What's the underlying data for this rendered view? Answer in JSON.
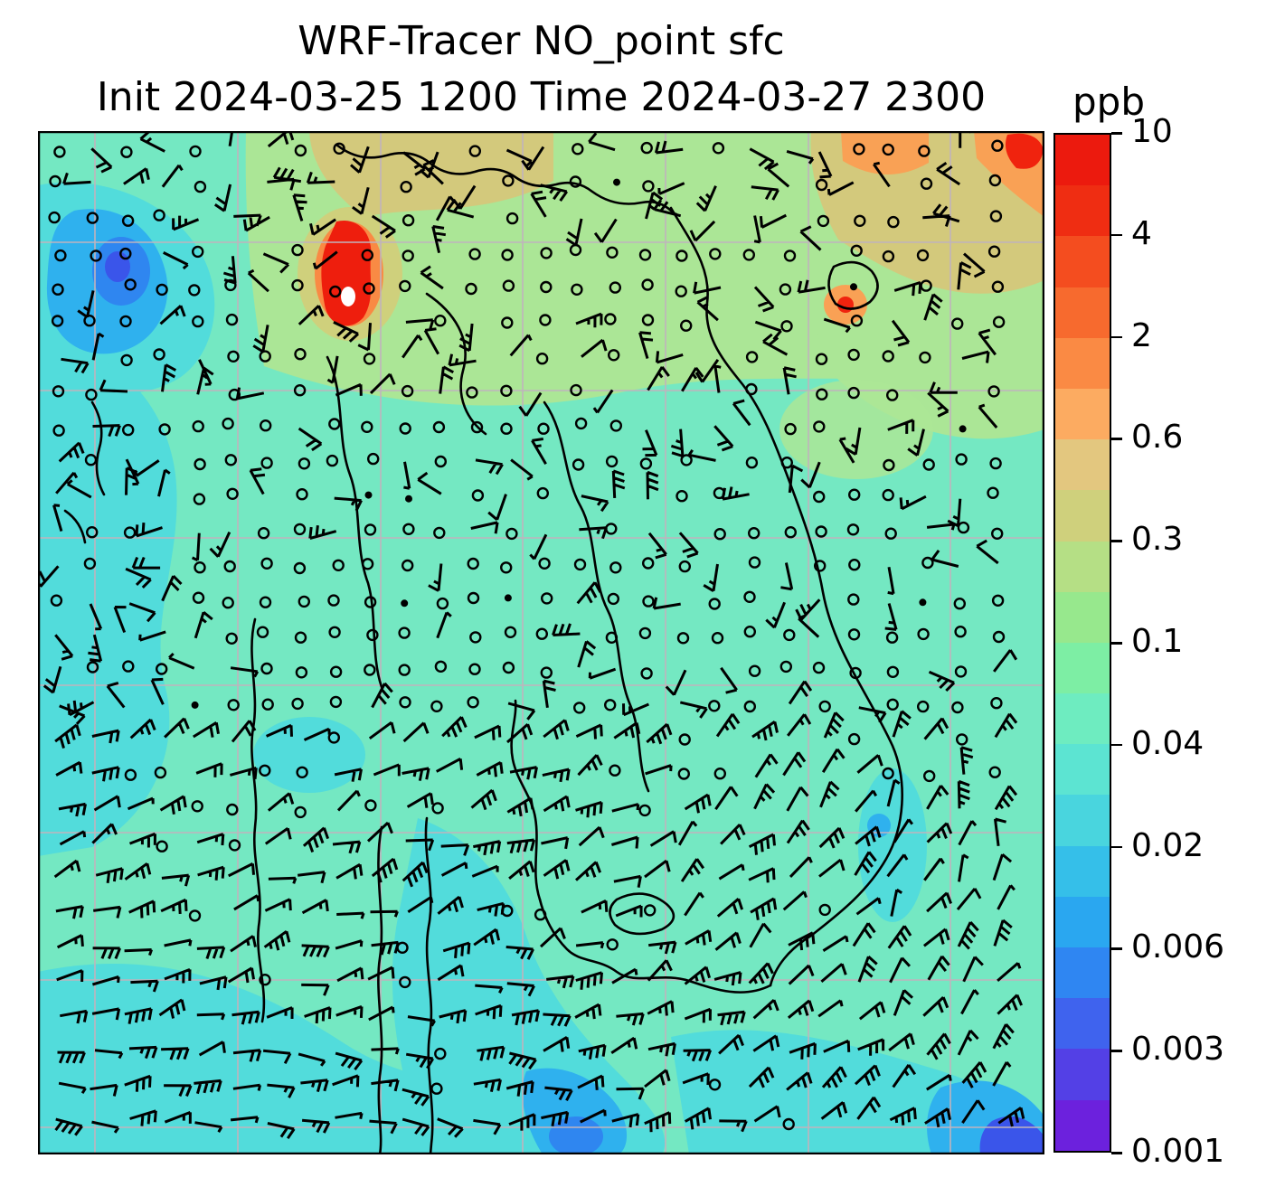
{
  "title": {
    "line1": "WRF-Tracer NO_point sfc",
    "line2": "Init 2024-03-25 1200 Time 2024-03-27 2300"
  },
  "colorbar": {
    "units": "ppb",
    "tick_labels": [
      "10",
      "4",
      "2",
      "0.6",
      "0.3",
      "0.1",
      "0.04",
      "0.02",
      "0.006",
      "0.003",
      "0.001"
    ],
    "band_colors_top_to_bottom": [
      "#ec1a0e",
      "#ef2d12",
      "#f44d1f",
      "#f76a2e",
      "#fa8a44",
      "#fcab61",
      "#e3c77f",
      "#cfd07c",
      "#b5df85",
      "#97e88d",
      "#7deea4",
      "#6eecc0",
      "#5ce4d2",
      "#49d5de",
      "#35bfe9",
      "#2aa7f0",
      "#2f86f2",
      "#3f63ee",
      "#5340e6",
      "#6c21dd"
    ]
  },
  "chart_data": {
    "type": "heatmap",
    "title": "WRF-Tracer NO_point sfc",
    "subtitle": "Init 2024-03-25 1200 Time 2024-03-27 2300",
    "variable": "NO_point surface tracer concentration",
    "init_time": "2024-03-25 1200",
    "valid_time": "2024-03-27 2300",
    "units": "ppb",
    "colorbar_levels": [
      0.001,
      0.003,
      0.006,
      0.02,
      0.04,
      0.1,
      0.3,
      0.6,
      2,
      4,
      10
    ],
    "colorbar_tick_labels_top_to_bottom": [
      "10",
      "4",
      "2",
      "0.6",
      "0.3",
      "0.1",
      "0.04",
      "0.02",
      "0.006",
      "0.003",
      "0.001"
    ],
    "colorbar_orientation": "vertical-right",
    "grid": true,
    "overlays": [
      "wind barbs",
      "calm-wind circles",
      "coastlines and borders",
      "gray lat-lon gridlines"
    ],
    "field_summary": [
      {
        "region": "most of interior domain",
        "value_ppb": "0.04-0.1"
      },
      {
        "region": "west flank, gulf and southern waters",
        "value_ppb": "0.02-0.04"
      },
      {
        "region": "northwest corner, south-central coast, southeast corner",
        "value_ppb": "0.003-0.02"
      },
      {
        "region": "northern band across top of domain",
        "value_ppb": "0.1-0.6"
      },
      {
        "region": "north-central hotspot with white core; northeast corner patches",
        "value_ppb": "2-10"
      }
    ]
  }
}
